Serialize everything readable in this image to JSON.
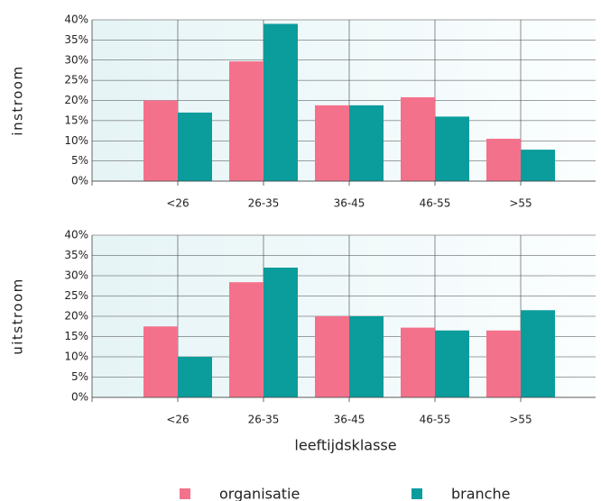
{
  "chart_data": [
    {
      "type": "bar",
      "ylabel": "instroom",
      "categories": [
        "<26",
        "26-35",
        "36-45",
        "46-55",
        ">55"
      ],
      "series": [
        {
          "color": "#f4718b",
          "values": [
            20,
            29.7,
            18.8,
            20.8,
            10.5
          ]
        },
        {
          "color": "#0b9c9c",
          "values": [
            17,
            39,
            18.8,
            16,
            7.8
          ]
        }
      ],
      "ylim": [
        0,
        40
      ],
      "yticks": [
        {
          "value": 0,
          "label": "0%"
        },
        {
          "value": 5,
          "label": "5%"
        },
        {
          "value": 10,
          "label": "10%"
        },
        {
          "value": 15,
          "label": "15%"
        },
        {
          "value": 20,
          "label": "20%"
        },
        {
          "value": 25,
          "label": "25%"
        },
        {
          "value": 30,
          "label": "30%"
        },
        {
          "value": 35,
          "label": "35%"
        },
        {
          "value": 40,
          "label": "40%"
        }
      ],
      "grid": true
    },
    {
      "type": "bar",
      "ylabel": "uitstroom",
      "xlabel": "leeftijdsklasse",
      "categories": [
        "<26",
        "26-35",
        "36-45",
        "46-55",
        ">55"
      ],
      "series": [
        {
          "name": "organisatie",
          "color": "#f4718b",
          "values": [
            17.5,
            28.4,
            20,
            17.2,
            16.5
          ]
        },
        {
          "name": "branche",
          "color": "#0b9c9c",
          "values": [
            10,
            32,
            20,
            16.5,
            21.5
          ]
        }
      ],
      "ylim": [
        0,
        40
      ],
      "yticks": [
        {
          "value": 0,
          "label": "0%"
        },
        {
          "value": 5,
          "label": "5%"
        },
        {
          "value": 10,
          "label": "10%"
        },
        {
          "value": 15,
          "label": "15%"
        },
        {
          "value": 20,
          "label": "20%"
        },
        {
          "value": 25,
          "label": "25%"
        },
        {
          "value": 30,
          "label": "30%"
        },
        {
          "value": 35,
          "label": "35%"
        },
        {
          "value": 40,
          "label": "40%"
        }
      ],
      "grid": true
    }
  ]
}
